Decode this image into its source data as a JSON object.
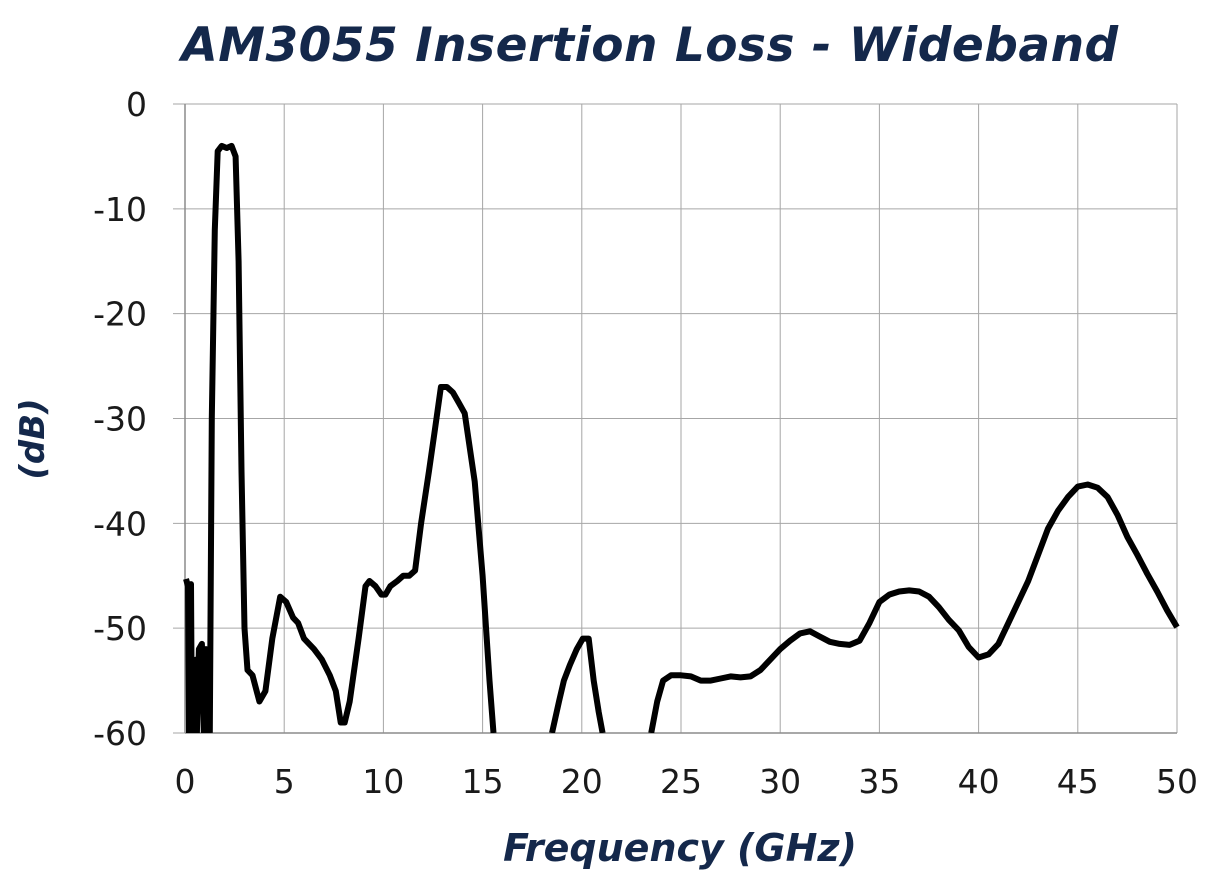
{
  "chart_data": {
    "type": "line",
    "title": "AM3055 Insertion Loss - Wideband",
    "xlabel": "Frequency (GHz)",
    "ylabel": "(dB)",
    "xlim": [
      0,
      50
    ],
    "ylim": [
      -60,
      0
    ],
    "x_ticks": [
      "0",
      "5",
      "10",
      "15",
      "20",
      "25",
      "30",
      "35",
      "40",
      "45",
      "50"
    ],
    "y_ticks": [
      "0",
      "-10",
      "-20",
      "-30",
      "-40",
      "-50",
      "-60"
    ],
    "grid": true,
    "line_color": "#000000",
    "title_color": "#14284b",
    "series": [
      {
        "segments": [
          [
            [
              0.05,
              -45.3
            ],
            [
              0.15,
              -46
            ],
            [
              0.2,
              -60
            ],
            [
              0.3,
              -45.8
            ],
            [
              0.35,
              -60
            ],
            [
              0.45,
              -60
            ],
            [
              0.55,
              -53
            ],
            [
              0.6,
              -60
            ],
            [
              0.7,
              -52
            ],
            [
              0.85,
              -51.5
            ],
            [
              0.95,
              -60
            ],
            [
              1.05,
              -52
            ],
            [
              1.15,
              -53
            ],
            [
              1.25,
              -60
            ],
            [
              1.35,
              -30
            ],
            [
              1.5,
              -12
            ],
            [
              1.65,
              -4.5
            ],
            [
              1.85,
              -4.0
            ],
            [
              2.1,
              -4.2
            ],
            [
              2.35,
              -4.0
            ],
            [
              2.55,
              -5
            ],
            [
              2.7,
              -15
            ],
            [
              2.85,
              -35
            ],
            [
              3.0,
              -50
            ],
            [
              3.15,
              -54
            ],
            [
              3.4,
              -54.5
            ],
            [
              3.75,
              -57
            ],
            [
              4.05,
              -56
            ],
            [
              4.4,
              -51
            ],
            [
              4.8,
              -47
            ],
            [
              5.1,
              -47.5
            ],
            [
              5.45,
              -49
            ],
            [
              5.7,
              -49.5
            ],
            [
              6.0,
              -51
            ],
            [
              6.5,
              -52
            ],
            [
              6.9,
              -53
            ],
            [
              7.3,
              -54.5
            ],
            [
              7.6,
              -56
            ],
            [
              7.85,
              -59
            ],
            [
              8.05,
              -59
            ],
            [
              8.3,
              -57
            ],
            [
              8.75,
              -51
            ],
            [
              9.1,
              -46
            ],
            [
              9.3,
              -45.5
            ],
            [
              9.6,
              -46
            ],
            [
              9.9,
              -46.8
            ],
            [
              10.1,
              -46.8
            ],
            [
              10.35,
              -46
            ],
            [
              10.7,
              -45.5
            ],
            [
              11.0,
              -45
            ],
            [
              11.3,
              -45
            ],
            [
              11.6,
              -44.5
            ],
            [
              11.9,
              -40
            ],
            [
              12.3,
              -35
            ],
            [
              12.6,
              -31
            ],
            [
              12.9,
              -27
            ],
            [
              13.2,
              -27
            ],
            [
              13.5,
              -27.5
            ],
            [
              13.8,
              -28.5
            ],
            [
              14.1,
              -29.5
            ],
            [
              14.6,
              -36
            ],
            [
              15.0,
              -45
            ],
            [
              15.35,
              -55
            ],
            [
              15.55,
              -60
            ]
          ],
          [
            [
              18.5,
              -60
            ],
            [
              18.85,
              -57
            ],
            [
              19.1,
              -55
            ],
            [
              19.4,
              -53.5
            ],
            [
              19.75,
              -52
            ],
            [
              20.05,
              -51
            ],
            [
              20.35,
              -51
            ],
            [
              20.6,
              -55
            ],
            [
              20.85,
              -58
            ],
            [
              21.05,
              -60
            ]
          ],
          [
            [
              23.5,
              -60
            ],
            [
              23.8,
              -57
            ],
            [
              24.1,
              -55
            ],
            [
              24.5,
              -54.5
            ],
            [
              25.0,
              -54.5
            ],
            [
              25.5,
              -54.6
            ],
            [
              26.0,
              -55
            ],
            [
              26.5,
              -55
            ],
            [
              27.0,
              -54.8
            ],
            [
              27.5,
              -54.6
            ],
            [
              28.0,
              -54.7
            ],
            [
              28.5,
              -54.6
            ],
            [
              29.0,
              -54
            ],
            [
              29.5,
              -53
            ],
            [
              30.0,
              -52
            ],
            [
              30.5,
              -51.2
            ],
            [
              31.0,
              -50.5
            ],
            [
              31.5,
              -50.3
            ],
            [
              32.0,
              -50.8
            ],
            [
              32.5,
              -51.3
            ],
            [
              33.0,
              -51.5
            ],
            [
              33.5,
              -51.6
            ],
            [
              34.0,
              -51.2
            ],
            [
              34.5,
              -49.5
            ],
            [
              35.0,
              -47.5
            ],
            [
              35.5,
              -46.8
            ],
            [
              36.0,
              -46.5
            ],
            [
              36.5,
              -46.4
            ],
            [
              37.0,
              -46.5
            ],
            [
              37.5,
              -47
            ],
            [
              38.0,
              -48
            ],
            [
              38.5,
              -49.2
            ],
            [
              39.0,
              -50.2
            ],
            [
              39.5,
              -51.8
            ],
            [
              40.0,
              -52.8
            ],
            [
              40.5,
              -52.5
            ],
            [
              41.0,
              -51.5
            ],
            [
              41.5,
              -49.5
            ],
            [
              42.0,
              -47.5
            ],
            [
              42.5,
              -45.5
            ],
            [
              43.0,
              -43
            ],
            [
              43.5,
              -40.5
            ],
            [
              44.0,
              -38.8
            ],
            [
              44.5,
              -37.5
            ],
            [
              45.0,
              -36.5
            ],
            [
              45.5,
              -36.3
            ],
            [
              46.0,
              -36.6
            ],
            [
              46.5,
              -37.5
            ],
            [
              47.0,
              -39.2
            ],
            [
              47.5,
              -41.3
            ],
            [
              48.0,
              -43
            ],
            [
              48.5,
              -44.8
            ],
            [
              49.0,
              -46.5
            ],
            [
              49.5,
              -48.3
            ],
            [
              50.0,
              -49.9
            ]
          ]
        ]
      }
    ]
  }
}
